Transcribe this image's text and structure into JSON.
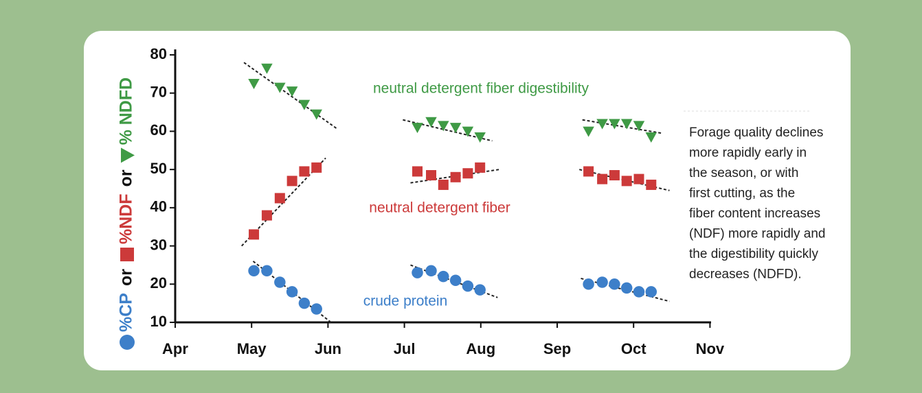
{
  "chart_data": {
    "type": "scatter",
    "y_label_parts": [
      "%CP",
      "or",
      "%NDF",
      "or",
      "% NDFD"
    ],
    "xlim": [
      3.95,
      10.2
    ],
    "xticks": [
      {
        "value": 4,
        "label": "Apr"
      },
      {
        "value": 5,
        "label": "May"
      },
      {
        "value": 6,
        "label": "Jun"
      },
      {
        "value": 7,
        "label": "Jul"
      },
      {
        "value": 8,
        "label": "Aug"
      },
      {
        "value": 9,
        "label": "Sep"
      },
      {
        "value": 10,
        "label": "Oct"
      },
      {
        "value": 11,
        "label": "Nov"
      }
    ],
    "ylim": [
      10,
      80
    ],
    "yticks": [
      10,
      20,
      30,
      40,
      50,
      60,
      70,
      80
    ],
    "series": [
      {
        "name": "crude protein",
        "color": "#3d7fc9",
        "marker": "circle",
        "x": [
          5.03,
          5.2,
          5.37,
          5.53,
          5.69,
          5.85,
          7.17,
          7.35,
          7.51,
          7.67,
          7.83,
          7.99,
          9.41,
          9.59,
          9.75,
          9.91,
          10.07,
          10.23
        ],
        "values": [
          23.5,
          23.5,
          20.5,
          18,
          15,
          13.5,
          23,
          23.5,
          22,
          21,
          19.5,
          18.5,
          20,
          20.5,
          20,
          19,
          18,
          18
        ],
        "trends": [
          {
            "x": [
              5.02,
              6.04
            ],
            "values": [
              26,
              10
            ]
          },
          {
            "x": [
              7.08,
              8.22
            ],
            "values": [
              25,
              16.5
            ]
          },
          {
            "x": [
              9.31,
              10.47
            ],
            "values": [
              21.5,
              15.5
            ]
          }
        ]
      },
      {
        "name": "neutral detergent fiber",
        "color": "#cc3a3a",
        "marker": "square",
        "x": [
          5.03,
          5.2,
          5.37,
          5.53,
          5.69,
          5.85,
          7.17,
          7.35,
          7.51,
          7.67,
          7.83,
          7.99,
          9.41,
          9.59,
          9.75,
          9.91,
          10.07,
          10.23
        ],
        "values": [
          33,
          38,
          42.5,
          47,
          49.5,
          50.5,
          49.5,
          48.5,
          46,
          48,
          49,
          50.5,
          49.5,
          47.5,
          48.5,
          47,
          47.5,
          46
        ],
        "trends": [
          {
            "x": [
              4.87,
              5.97
            ],
            "values": [
              30,
              53
            ]
          },
          {
            "x": [
              7.08,
              8.24
            ],
            "values": [
              46.5,
              50
            ]
          },
          {
            "x": [
              9.29,
              10.47
            ],
            "values": [
              50,
              44.5
            ]
          }
        ]
      },
      {
        "name": "neutral detergent fiber digestibility",
        "color": "#3f9a45",
        "marker": "triangle",
        "x": [
          5.03,
          5.2,
          5.37,
          5.53,
          5.69,
          5.85,
          7.17,
          7.35,
          7.51,
          7.67,
          7.83,
          7.99,
          9.41,
          9.59,
          9.75,
          9.91,
          10.07,
          10.23
        ],
        "values": [
          72.5,
          76.5,
          71.5,
          70.5,
          67,
          64.5,
          61,
          62.5,
          61.5,
          61,
          60,
          58.5,
          60,
          62,
          62,
          62,
          61.5,
          58.5
        ],
        "trends": [
          {
            "x": [
              4.9,
              6.13
            ],
            "values": [
              78,
              60.5
            ]
          },
          {
            "x": [
              6.98,
              8.15
            ],
            "values": [
              63,
              57.5
            ]
          },
          {
            "x": [
              9.33,
              10.37
            ],
            "values": [
              63,
              59.5
            ]
          }
        ]
      }
    ],
    "annotation": [
      "Forage quality declines",
      "more rapidly early in",
      "the season, or with",
      "first cutting, as the",
      "fiber content increases",
      "(NDF) more rapidly and",
      "the digestibility quickly",
      "decreases (NDFD)."
    ]
  }
}
